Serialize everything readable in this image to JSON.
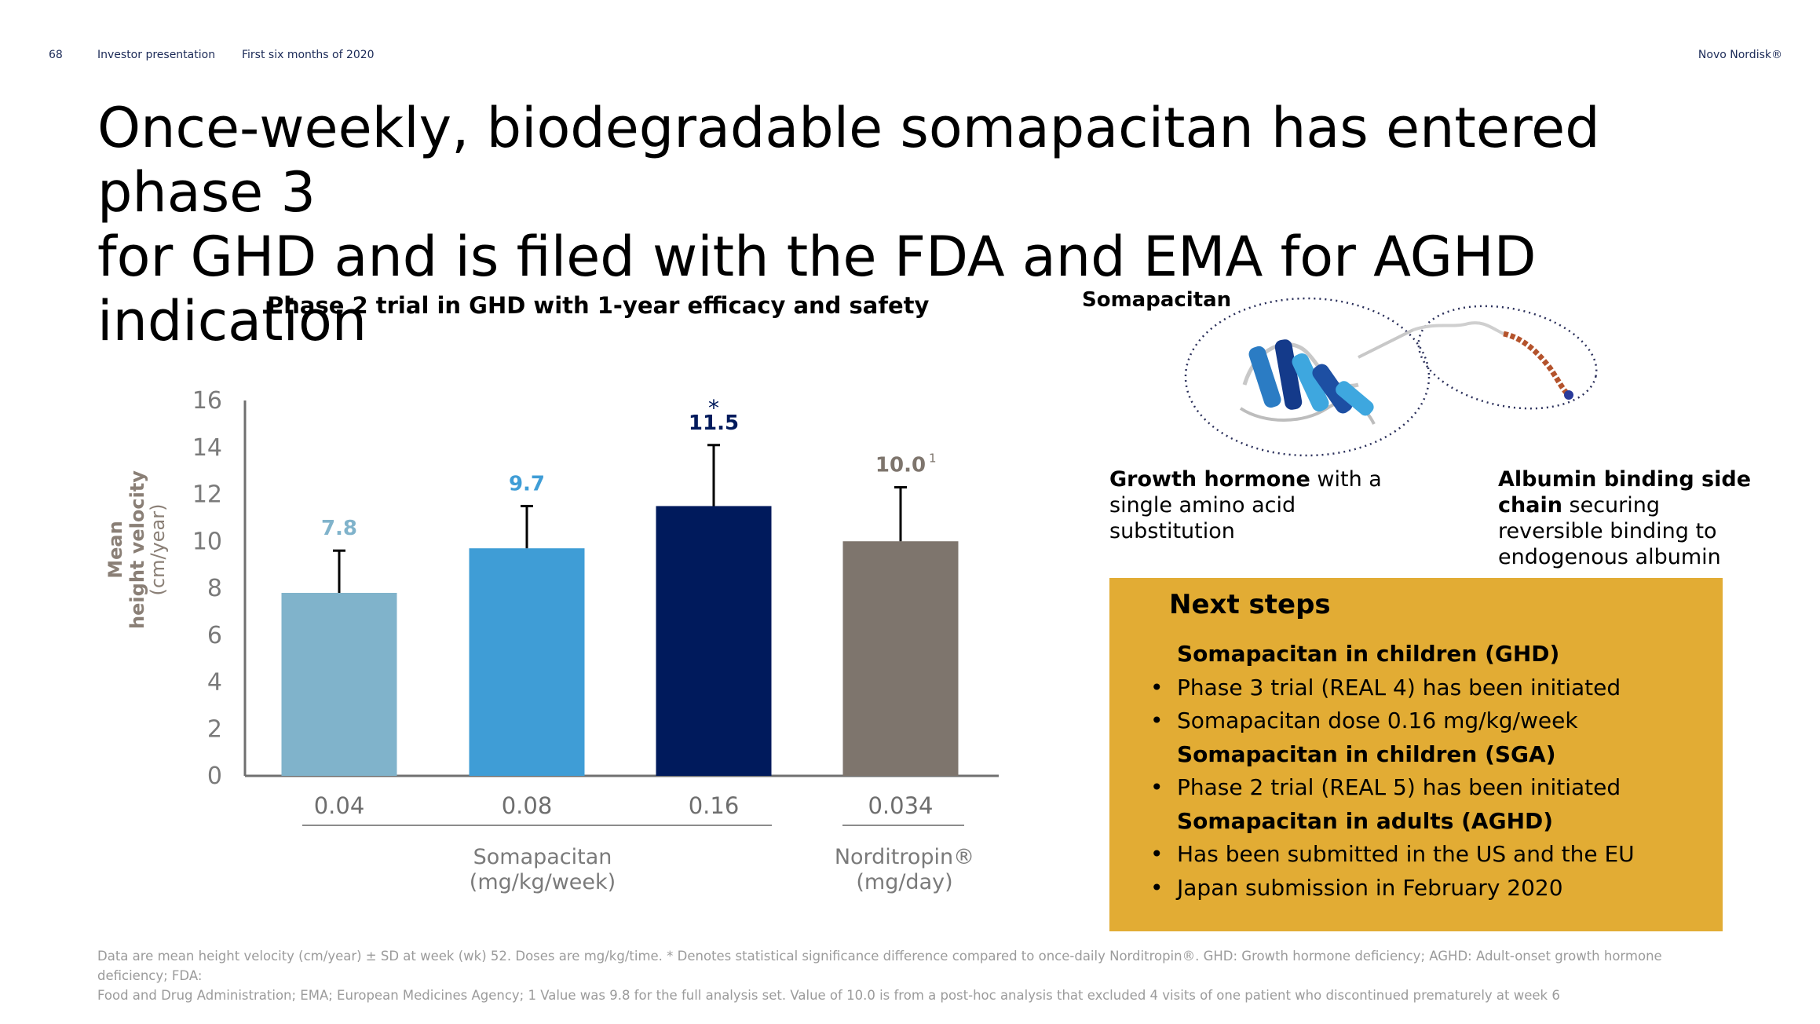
{
  "header": {
    "page_number": "68",
    "doc_type": "Investor presentation",
    "period": "First six months of 2020",
    "brand": "Novo Nordisk®"
  },
  "title": {
    "line1": "Once-weekly, biodegradable somapacitan has entered phase 3",
    "line2": "for GHD and is filed with the FDA and EMA for AGHD indication"
  },
  "chart_data": {
    "type": "bar",
    "title": "Phase 2 trial in GHD with 1-year efficacy and safety",
    "ylabel": {
      "line1": "Mean",
      "line2": "height velocity",
      "line3": "(cm/year)"
    },
    "ylim": [
      0,
      16
    ],
    "yticks": [
      "0",
      "2",
      "4",
      "6",
      "8",
      "10",
      "12",
      "14",
      "16"
    ],
    "grid": false,
    "categories": [
      "0.04",
      "0.08",
      "0.16",
      "0.034"
    ],
    "values": [
      7.8,
      9.7,
      11.5,
      10.0
    ],
    "value_labels": [
      "7.8",
      "9.7",
      "11.5",
      "10.0"
    ],
    "value_superscripts": [
      "",
      "",
      "",
      "1"
    ],
    "significance": [
      "",
      "",
      "*",
      ""
    ],
    "error_upper": [
      9.6,
      11.5,
      14.1,
      12.3
    ],
    "colors": [
      "#80b3cb",
      "#3f9dd6",
      "#001a5c",
      "#7e756d"
    ],
    "label_colors": [
      "#80b3cb",
      "#3f9dd6",
      "#001a5c",
      "#7e756d"
    ],
    "groups": [
      {
        "label_line1": "Somapacitan",
        "label_line2": "(mg/kg/week)",
        "categories": [
          0,
          1,
          2
        ]
      },
      {
        "label_line1": "Norditropin®",
        "label_line2": "(mg/day)",
        "categories": [
          3
        ]
      }
    ]
  },
  "molecule": {
    "label": "Somapacitan",
    "growth_hormone": {
      "bold": "Growth hormone",
      "rest1": " with a",
      "line2": "single amino acid",
      "line3": "substitution"
    },
    "albumin": {
      "bold1": "Albumin binding side",
      "bold2": "chain",
      "rest2": " securing",
      "line3": "reversible binding to",
      "line4": "endogenous albumin"
    }
  },
  "next_steps": {
    "title": "Next steps",
    "items": [
      {
        "kind": "head",
        "text": "Somapacitan in children (GHD)"
      },
      {
        "kind": "bullet",
        "text": "Phase 3 trial (REAL 4) has been initiated"
      },
      {
        "kind": "bullet",
        "text": "Somapacitan dose 0.16 mg/kg/week"
      },
      {
        "kind": "head",
        "text": "Somapacitan in children (SGA)"
      },
      {
        "kind": "bullet",
        "text": "Phase 2 trial (REAL 5) has been initiated"
      },
      {
        "kind": "head",
        "text": "Somapacitan in adults (AGHD)"
      },
      {
        "kind": "bullet",
        "text": "Has been submitted in the US and the EU"
      },
      {
        "kind": "bullet",
        "text": "Japan submission in February 2020"
      }
    ]
  },
  "footnote": {
    "line1": "Data are mean height velocity (cm/year) ± SD at week (wk) 52. Doses are mg/kg/time. * Denotes statistical significance difference compared to once-daily Norditropin®. GHD: Growth hormone deficiency; AGHD: Adult-onset growth hormone deficiency; FDA:",
    "line2": "Food and Drug Administration; EMA; European Medicines Agency; 1 Value was 9.8 for the full analysis set. Value of 10.0 is from a post-hoc analysis that excluded 4 visits of one patient who discontinued prematurely at week 6"
  }
}
